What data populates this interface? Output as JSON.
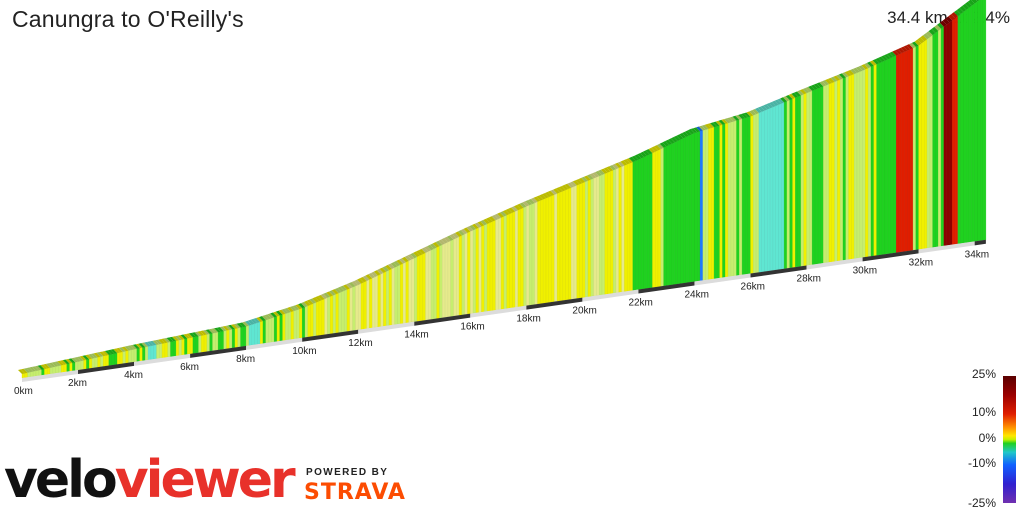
{
  "header": {
    "title": "Canungra to O'Reilly's",
    "summary": "34.4 km at 2.4%"
  },
  "chart_data": {
    "type": "area",
    "subtype": "3d-elevation-profile",
    "title": "Canungra to O'Reilly's",
    "distance_km": 34.4,
    "avg_gradient_pct": 2.4,
    "x_unit": "km",
    "tick_labels": [
      "0km",
      "2km",
      "4km",
      "6km",
      "8km",
      "10km",
      "12km",
      "14km",
      "16km",
      "18km",
      "20km",
      "22km",
      "24km",
      "26km",
      "28km",
      "30km",
      "32km",
      "34km"
    ],
    "x": [
      0,
      2,
      4,
      6,
      8,
      10,
      12,
      14,
      16,
      18,
      20,
      22,
      24,
      26,
      28,
      30,
      32,
      34,
      34.4
    ],
    "elevation_rel": [
      0,
      5,
      10,
      14,
      18,
      30,
      48,
      70,
      92,
      112,
      130,
      148,
      170,
      180,
      198,
      215,
      235,
      275,
      283
    ],
    "gradient_scale": {
      "labels": [
        "25%",
        "10%",
        "0%",
        "-10%",
        "-25%"
      ],
      "max": 25,
      "min": -25
    },
    "colors": {
      "green": "#1fd21f",
      "light_green": "#c6ee6e",
      "yellow": "#f0f000",
      "pale_yellow": "#e6ea8c",
      "cyan": "#5fe6d2",
      "blue": "#1e78ff",
      "red": "#e01e00",
      "dark_red": "#8c0000"
    }
  },
  "branding": {
    "velo": "velo",
    "viewer": "viewer",
    "powered_by": "POWERED BY",
    "strava": "STRAVA"
  }
}
